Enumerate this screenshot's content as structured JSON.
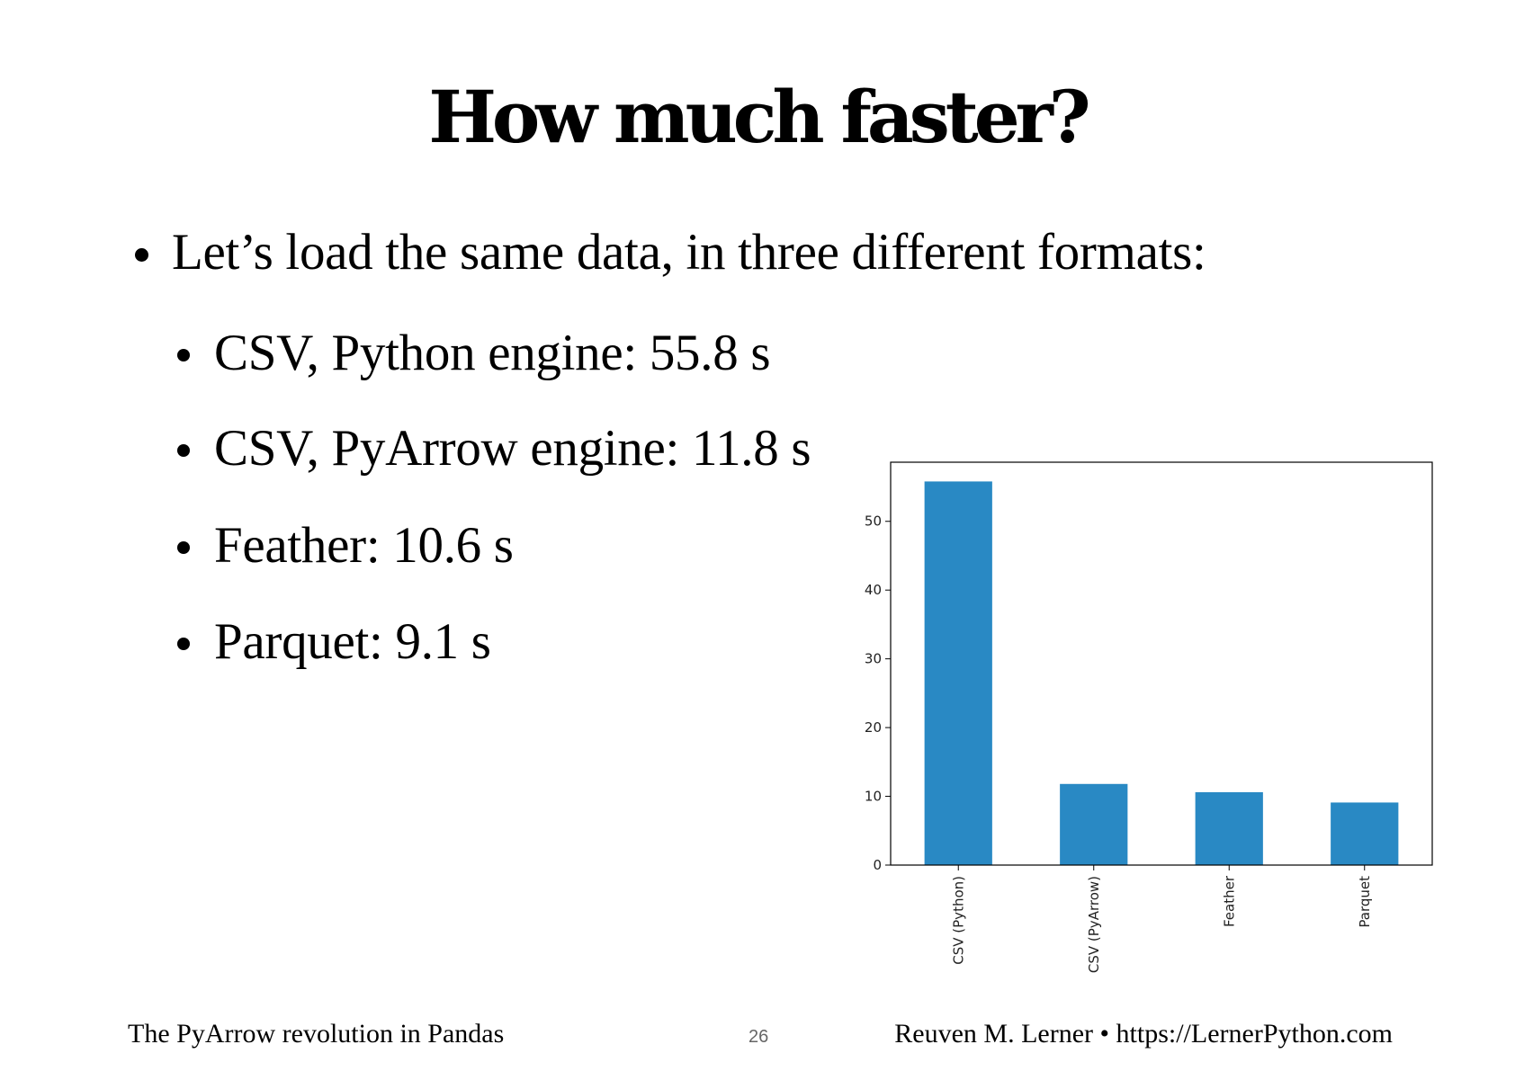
{
  "slide": {
    "title": "How much faster?",
    "bullets": {
      "main": "Let’s load the same data, in three different formats:",
      "items": [
        "CSV, Python engine: 55.8 s",
        "CSV, PyArrow engine: 11.8 s",
        "Feather: 10.6 s",
        "Parquet: 9.1 s"
      ]
    },
    "footer": {
      "left": "The PyArrow revolution in Pandas",
      "page_number": "26",
      "right": "Reuven M. Lerner • https://LernerPython.com"
    }
  },
  "chart_data": {
    "type": "bar",
    "categories": [
      "CSV (Python)",
      "CSV (PyArrow)",
      "Feather",
      "Parquet"
    ],
    "values": [
      55.8,
      11.8,
      10.6,
      9.1
    ],
    "title": "",
    "xlabel": "",
    "ylabel": "",
    "ylim": [
      0,
      58.6
    ],
    "yticks": [
      0,
      10,
      20,
      30,
      40,
      50
    ],
    "bar_color": "#2989c4",
    "grid": false,
    "legend": false
  }
}
